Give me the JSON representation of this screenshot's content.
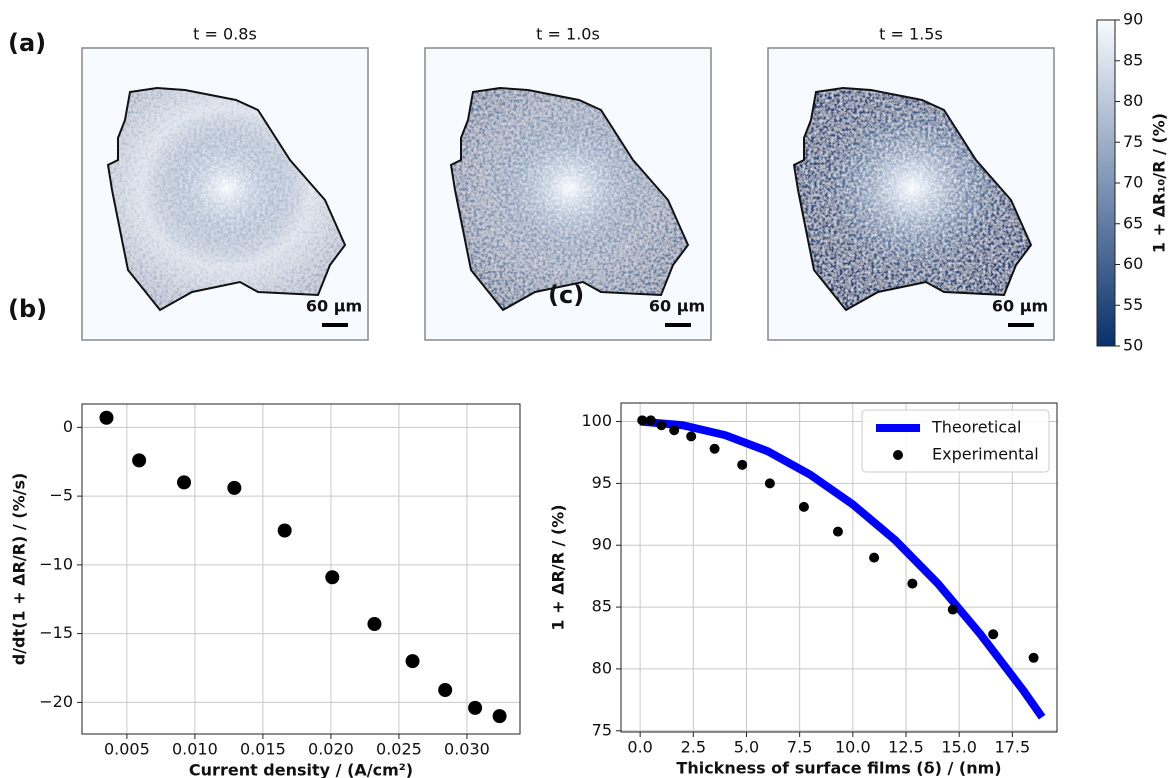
{
  "chart_data": [
    {
      "type": "heatmap",
      "panel_label": "(a)",
      "panels": [
        {
          "title": "t = 0.8s",
          "scale_bar": "60 µm"
        },
        {
          "title": "t = 1.0s",
          "scale_bar": "60 µm"
        },
        {
          "title": "t = 1.5s",
          "scale_bar": "60 µm"
        }
      ],
      "colorbar_label": "1 + ΔR₁₀/R / (%)",
      "clim": [
        50,
        90
      ],
      "cticks": [
        50,
        55,
        60,
        65,
        70,
        75,
        80,
        85,
        90
      ],
      "cmap": [
        "#08306b",
        "#f7fbff"
      ]
    },
    {
      "type": "scatter",
      "panel_label": "(b)",
      "xlabel": "Current density / (A/cm²)",
      "ylabel": "d/dt(1 + ΔR/R) / (%/s)",
      "x": [
        0.0035,
        0.0059,
        0.0092,
        0.0129,
        0.0166,
        0.0201,
        0.0232,
        0.026,
        0.0284,
        0.0306,
        0.0324
      ],
      "values": [
        0.7,
        -2.4,
        -4.0,
        -4.4,
        -7.5,
        -10.9,
        -14.3,
        -17.0,
        -19.1,
        -20.4,
        -21.0
      ],
      "color": "#000000",
      "xlim": [
        0.0017,
        0.0339
      ],
      "ylim": [
        -22.3,
        1.7
      ],
      "xticks": [
        0.005,
        {
          "value": 0.01,
          "label": "0.010"
        },
        0.015,
        {
          "value": 0.02,
          "label": "0.020"
        },
        0.025,
        {
          "value": 0.03,
          "label": "0.030"
        }
      ],
      "yticks": [
        {
          "value": -20,
          "label": "−20"
        },
        {
          "value": -15,
          "label": "−15"
        },
        {
          "value": -10,
          "label": "−10"
        },
        {
          "value": -5,
          "label": "−5"
        },
        0
      ],
      "grid": true
    },
    {
      "type": "line",
      "panel_label": "(c)",
      "xlabel": "Thickness of surface films (δ) / (nm)",
      "ylabel": "1 + ΔR/R / (%)",
      "xlim": [
        -0.9,
        19.6
      ],
      "ylim": [
        74.9,
        101.5
      ],
      "xticks": [
        {
          "value": 0,
          "label": "0.0"
        },
        2.5,
        {
          "value": 5,
          "label": "5.0"
        },
        7.5,
        {
          "value": 10,
          "label": "10.0"
        },
        12.5,
        {
          "value": 15,
          "label": "15.0"
        },
        17.5
      ],
      "yticks": [
        75,
        80,
        85,
        90,
        95,
        100
      ],
      "grid": true,
      "legend": "upper right",
      "series": [
        {
          "name": "Theoretical",
          "type": "line",
          "color": "#0000ff",
          "x": [
            0,
            2,
            4,
            6,
            8,
            10,
            12,
            14,
            16,
            18,
            18.9
          ],
          "values": [
            100,
            99.7,
            98.9,
            97.6,
            95.7,
            93.3,
            90.4,
            86.9,
            82.8,
            78.3,
            76.1
          ]
        },
        {
          "name": "Experimental",
          "type": "scatter",
          "color": "#000000",
          "x": [
            0.1,
            0.5,
            1.0,
            1.6,
            2.4,
            3.5,
            4.8,
            6.1,
            7.7,
            9.3,
            11.0,
            12.8,
            14.7,
            16.6,
            18.5
          ],
          "values": [
            100.1,
            100.1,
            99.7,
            99.3,
            98.8,
            97.8,
            96.5,
            95.0,
            93.1,
            91.1,
            89.0,
            86.9,
            84.8,
            82.8,
            80.9
          ]
        }
      ]
    }
  ]
}
